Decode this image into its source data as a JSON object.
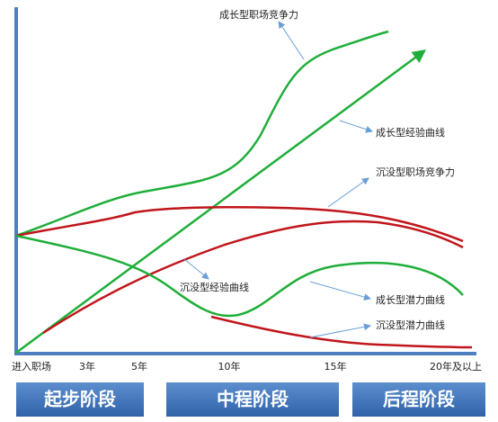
{
  "annotations": [
    "成长型职场竞争力",
    "成长型经验曲线",
    "沉没型职场竞争力",
    "沉没型经验曲线",
    "成长型潜力曲线",
    "沉没型潜力曲线"
  ],
  "x_axis_labels": [
    "进入职场",
    "3年",
    "5年",
    "10年",
    "15年",
    "20年及以上"
  ],
  "stages": [
    "起步阶段",
    "中程阶段",
    "后程阶段"
  ]
}
